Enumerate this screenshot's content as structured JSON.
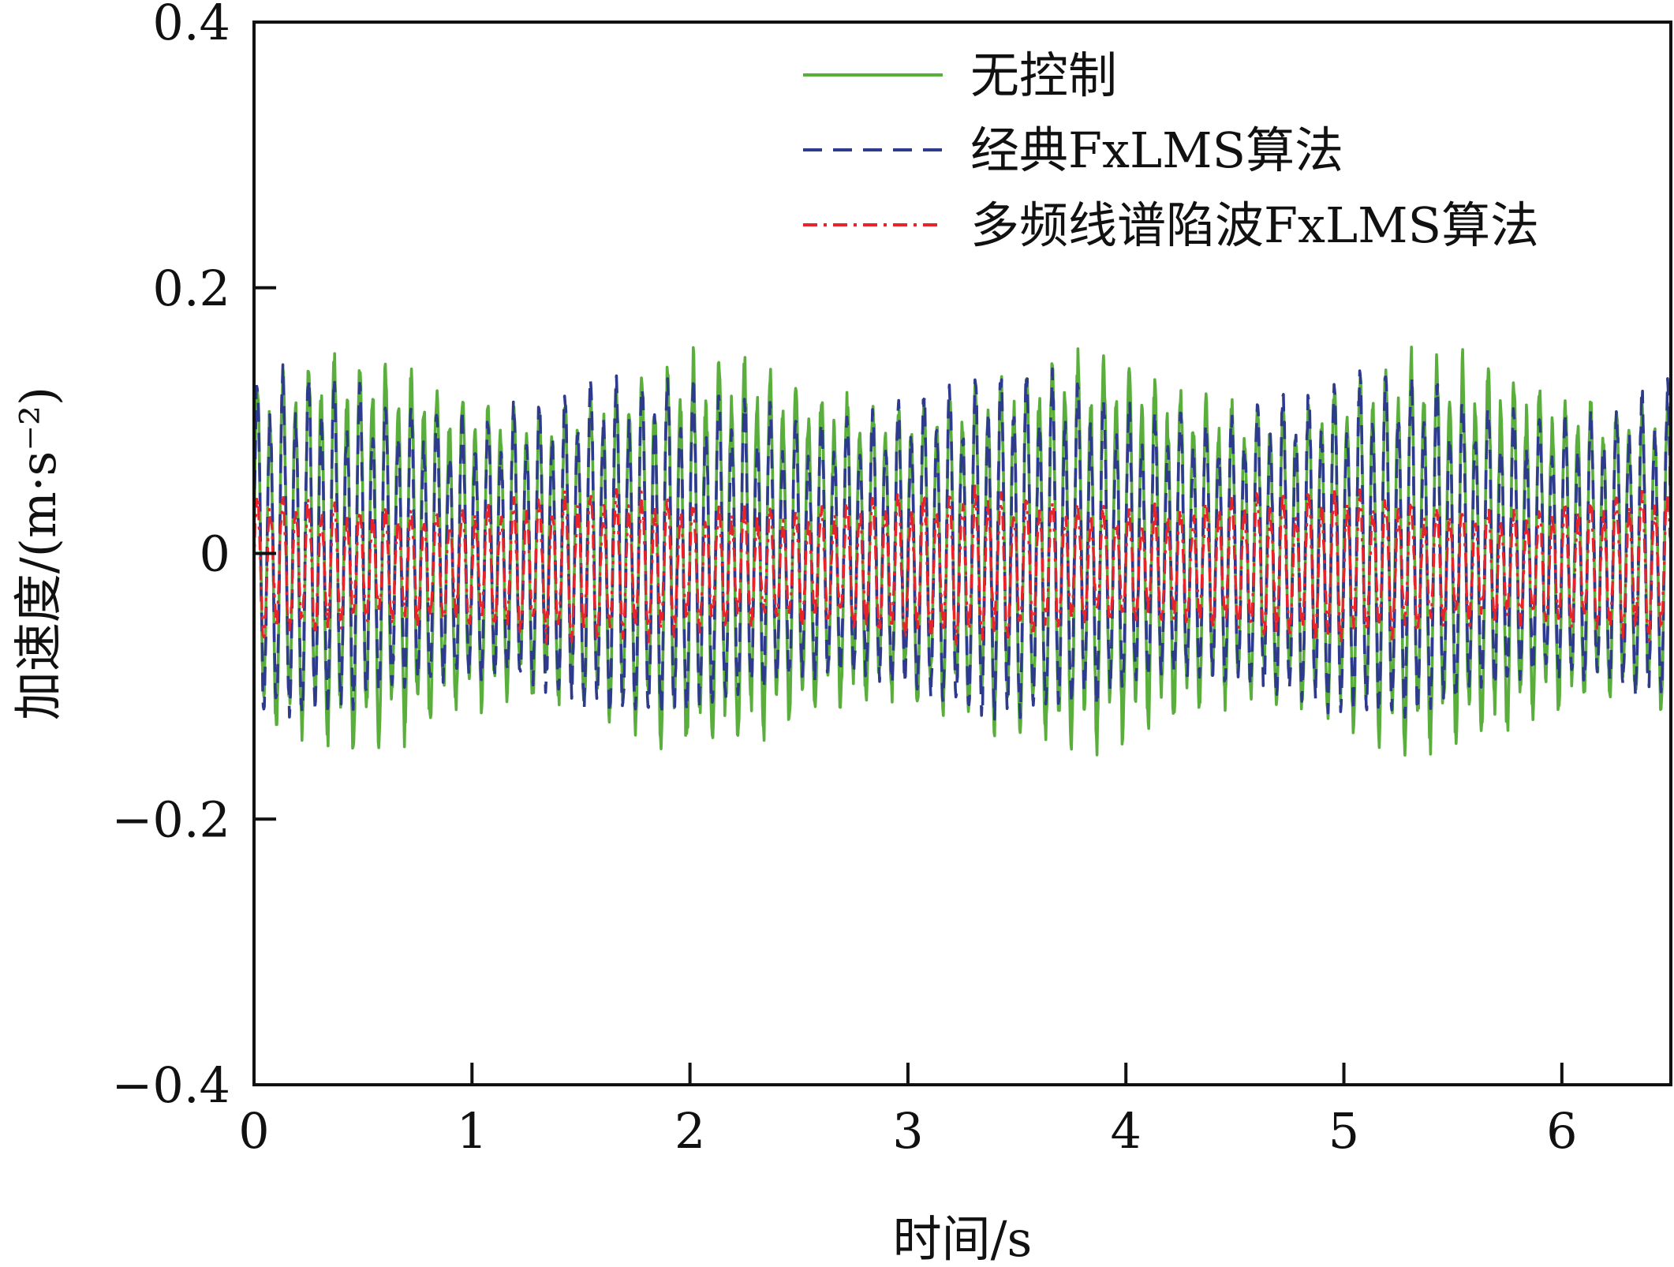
{
  "chart_data": {
    "type": "line",
    "title": "",
    "xlabel": "时间/s",
    "ylabel": "加速度/(m·s⁻²)",
    "xlim": [
      0,
      6.5
    ],
    "ylim": [
      -0.4,
      0.4
    ],
    "x_ticks": [
      0,
      1,
      2,
      3,
      4,
      5,
      6
    ],
    "x_tick_labels": [
      "0",
      "1",
      "2",
      "3",
      "4",
      "5",
      "6"
    ],
    "y_ticks": [
      0.4,
      0.2,
      0,
      -0.2,
      -0.4
    ],
    "y_tick_labels": [
      "0.4",
      "0.2",
      "0",
      "−0.2",
      "−0.4"
    ],
    "grid": false,
    "legend": {
      "position": "top-right"
    },
    "series": [
      {
        "name": "无控制",
        "color": "#5aaf3c",
        "dash": "solid",
        "signal": {
          "dominant_frequency_hz": 17,
          "peak_amplitude": 0.19,
          "mean": 0.0
        }
      },
      {
        "name": "经典FxLMS算法",
        "color": "#2e3a8c",
        "dash": "dashed",
        "signal": {
          "dominant_frequency_hz": 17,
          "peak_amplitude": 0.17,
          "mean": 0.0
        }
      },
      {
        "name": "多频线谱陷波FxLMS算法",
        "color": "#e8232a",
        "dash": "dashdot",
        "signal": {
          "dominant_frequency_hz": 17,
          "peak_amplitude": 0.07,
          "mean": -0.01
        }
      }
    ]
  }
}
